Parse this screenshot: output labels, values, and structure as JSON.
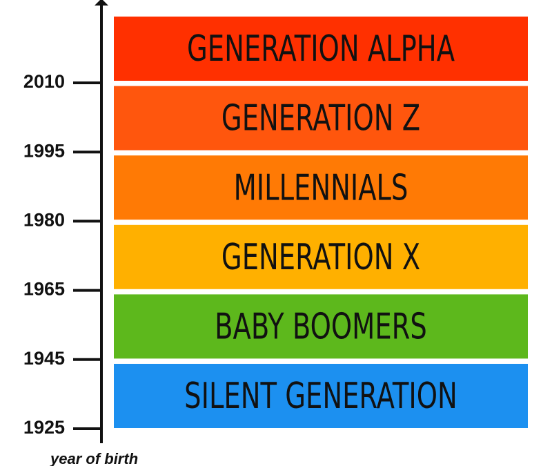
{
  "axis": {
    "title": "year of birth",
    "ticks": [
      "2010",
      "1995",
      "1980",
      "1965",
      "1945",
      "1925"
    ]
  },
  "bands": [
    {
      "label": "GENERATION ALPHA",
      "color": "#ff3000"
    },
    {
      "label": "GENERATION Z",
      "color": "#ff560d"
    },
    {
      "label": "MILLENNIALS",
      "color": "#ff7a05"
    },
    {
      "label": "GENERATION X",
      "color": "#ffb000"
    },
    {
      "label": "BABY BOOMERS",
      "color": "#5db81c"
    },
    {
      "label": "SILENT GENERATION",
      "color": "#1c90f0"
    }
  ]
}
